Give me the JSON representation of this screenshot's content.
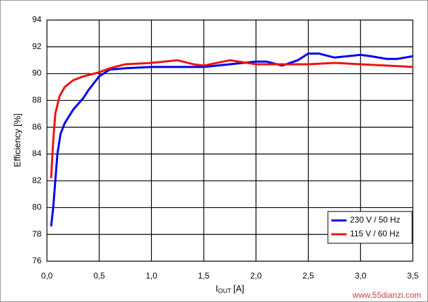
{
  "chart_data": {
    "type": "line",
    "y_label": "Efficiency [%]",
    "x_label_parts": [
      "I",
      "OUT",
      "[A]"
    ],
    "watermark": "www.55dianzi.com",
    "xlim": [
      0,
      3.5
    ],
    "xticks": [
      {
        "value": 0,
        "label": "0,0"
      },
      {
        "value": 0.5,
        "label": "0,5"
      },
      {
        "value": 1,
        "label": "1,0"
      },
      {
        "value": 1.5,
        "label": "1,5"
      },
      {
        "value": 2,
        "label": "2,0"
      },
      {
        "value": 2.5,
        "label": "2,5"
      },
      {
        "value": 3,
        "label": "3,0"
      },
      {
        "value": 3.5,
        "label": "3,5"
      }
    ],
    "ylim": [
      76,
      94
    ],
    "yticks": [
      76,
      78,
      80,
      82,
      84,
      86,
      88,
      90,
      92,
      94
    ],
    "grid": true,
    "legend": "lower-right",
    "series": [
      {
        "name": "230 V / 50 Hz",
        "color": "#0000ee",
        "x": [
          0.04,
          0.06,
          0.08,
          0.1,
          0.13,
          0.17,
          0.25,
          0.35,
          0.4,
          0.5,
          0.6,
          0.75,
          1.0,
          1.25,
          1.5,
          1.75,
          2.0,
          2.1,
          2.25,
          2.4,
          2.5,
          2.6,
          2.75,
          3.0,
          3.1,
          3.25,
          3.35,
          3.5
        ],
        "values": [
          78.6,
          80,
          82,
          84,
          85.5,
          86.3,
          87.3,
          88.2,
          88.8,
          89.8,
          90.3,
          90.4,
          90.5,
          90.5,
          90.5,
          90.7,
          90.9,
          90.9,
          90.6,
          91.0,
          91.5,
          91.5,
          91.2,
          91.4,
          91.3,
          91.1,
          91.1,
          91.3
        ]
      },
      {
        "name": "115 V / 60 Hz",
        "color": "#ee1111",
        "x": [
          0.04,
          0.06,
          0.08,
          0.12,
          0.17,
          0.25,
          0.35,
          0.5,
          0.6,
          0.75,
          1.0,
          1.25,
          1.4,
          1.5,
          1.75,
          2.0,
          2.25,
          2.5,
          2.75,
          3.0,
          3.25,
          3.5
        ],
        "values": [
          82.2,
          85,
          87,
          88.3,
          89,
          89.5,
          89.8,
          90.1,
          90.4,
          90.7,
          90.8,
          91.0,
          90.7,
          90.6,
          91.0,
          90.7,
          90.7,
          90.7,
          90.8,
          90.7,
          90.6,
          90.5
        ]
      }
    ]
  }
}
